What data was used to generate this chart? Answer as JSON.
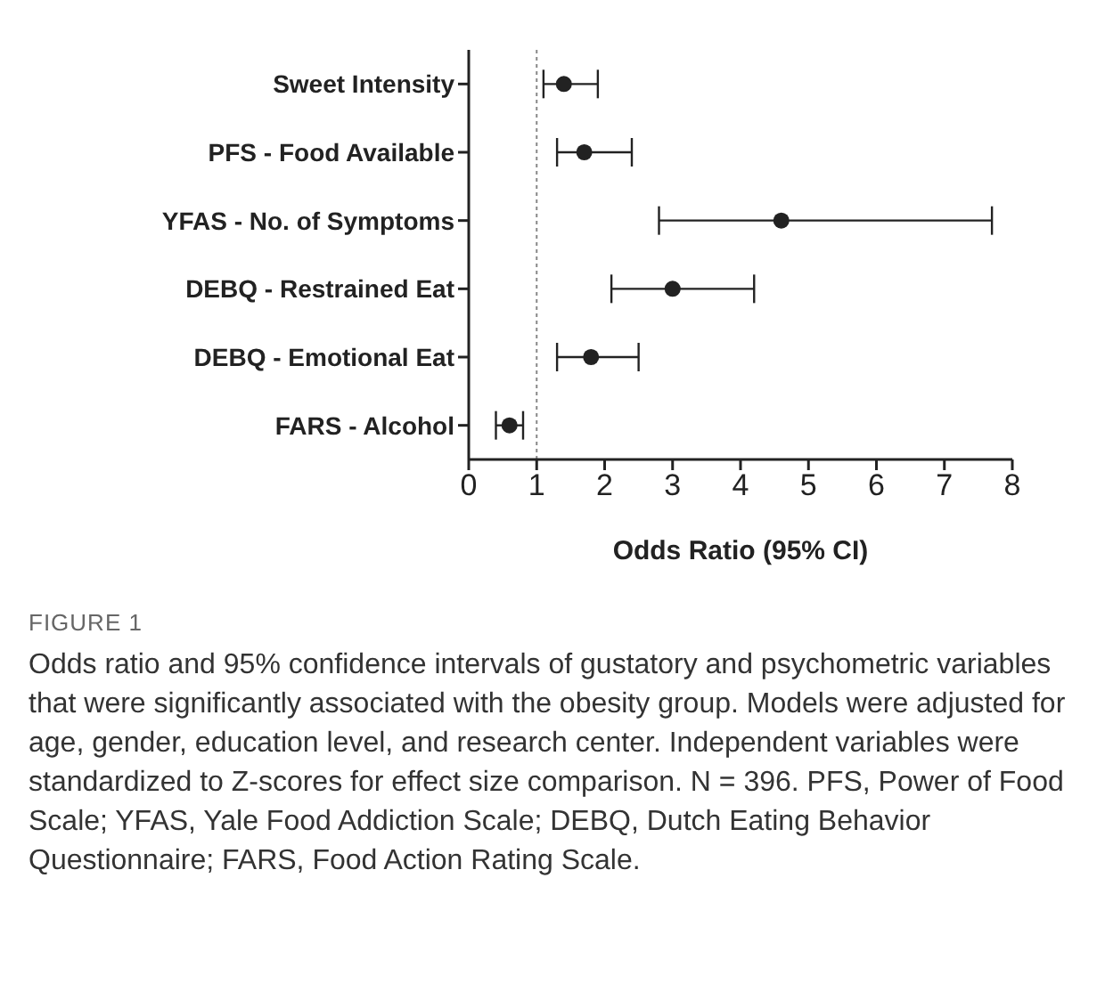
{
  "chart_data": {
    "type": "scatter",
    "orientation": "horizontal",
    "categories": [
      "Sweet Intensity",
      "PFS - Food Available",
      "YFAS - No. of Symptoms",
      "DEBQ - Restrained Eat",
      "DEBQ - Emotional Eat",
      "FARS - Alcohol"
    ],
    "series": [
      {
        "color": "#222222",
        "values": [
          1.4,
          1.7,
          4.6,
          3.0,
          1.8,
          0.6
        ],
        "errors": [
          [
            1.1,
            1.9
          ],
          [
            1.3,
            2.4
          ],
          [
            2.8,
            7.7
          ],
          [
            2.1,
            4.2
          ],
          [
            1.3,
            2.5
          ],
          [
            0.4,
            0.8
          ]
        ]
      }
    ],
    "xlim": [
      0,
      8
    ],
    "xticks": [
      0,
      1,
      2,
      3,
      4,
      5,
      6,
      7,
      8
    ],
    "xlabel": "Odds Ratio (95% CI)",
    "ref_lines": [
      {
        "axis": "x",
        "value": 1,
        "color": "#888888",
        "line_style": "dotted"
      }
    ],
    "marker": "circle",
    "grid": false,
    "legend": false,
    "annotations": [
      "FIGURE 1",
      "Odds ratio and 95% confidence intervals of gustatory and psychometric variables that were significantly associated with the obesity group. Models were adjusted for age, gender, education level, and research center. Independent variables were standardized to Z-scores for effect size comparison. N = 396. PFS, Power of Food Scale; YFAS, Yale Food Addiction Scale; DEBQ, Dutch Eating Behavior Questionnaire; FARS, Food Action Rating Scale."
    ]
  }
}
